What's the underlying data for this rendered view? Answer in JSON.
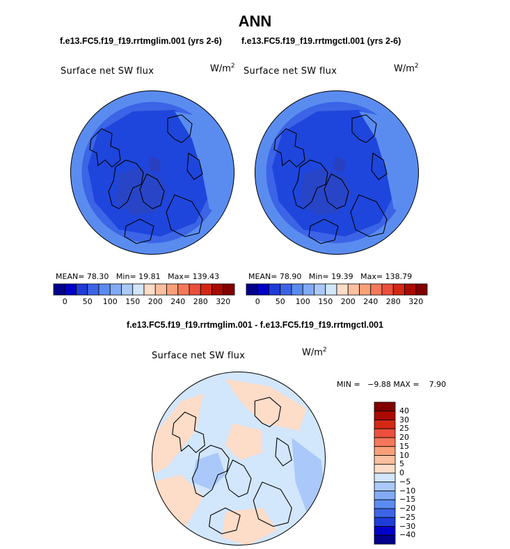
{
  "header": {
    "title": "ANN",
    "left_case": "f.e13.FC5.f19_f19.rrtmglim.001 (yrs 2-6)",
    "right_case": "f.e13.FC5.f19_f19.rrtmgctl.001 (yrs 2-6)",
    "diff_title": "f.e13.FC5.f19_f19.rrtmglim.001 - f.e13.FC5.f19_f19.rrtmgctl.001"
  },
  "colors": {
    "blues": [
      "#00008c",
      "#0000c8",
      "#1e3cd7",
      "#3c64e6",
      "#5a8cf0",
      "#82aaf5",
      "#aac8fa",
      "#d2e6fc"
    ],
    "reds": [
      "#fddcc8",
      "#fcc0a0",
      "#faa078",
      "#f5785a",
      "#eb503c",
      "#d22814",
      "#aa0a00",
      "#820000"
    ],
    "map_base": "#3c64e6",
    "map_inner": "#1e46dc",
    "map_dark": "#2845c8",
    "map_light": "#5a8cf0",
    "diff_base": "#d2e6fc",
    "diff_warm": "#fddcc8",
    "diff_cool": "#aac8fa"
  },
  "chart_data": [
    {
      "type": "heatmap",
      "panel": "left",
      "title": "Surface net SW flux",
      "units": "W/m",
      "unit_sup": "2",
      "stats": {
        "mean_label": "MEAN=",
        "mean": "78.30",
        "min_label": "Min=",
        "min": "19.81",
        "max_label": "Max=",
        "max": "139.43"
      },
      "colorbar_ticks": [
        "0",
        "50",
        "100",
        "150",
        "200",
        "240",
        "280",
        "320"
      ]
    },
    {
      "type": "heatmap",
      "panel": "right",
      "title": "Surface net SW flux",
      "units": "W/m",
      "unit_sup": "2",
      "stats": {
        "mean_label": "MEAN=",
        "mean": "78.90",
        "min_label": "Min=",
        "min": "19.39",
        "max_label": "Max=",
        "max": "138.79"
      },
      "colorbar_ticks": [
        "0",
        "50",
        "100",
        "150",
        "200",
        "240",
        "280",
        "320"
      ]
    },
    {
      "type": "heatmap",
      "panel": "difference",
      "title": "Surface net SW flux",
      "units": "W/m",
      "unit_sup": "2",
      "stats_text": "MIN =   −9.88 MAX =    7.90",
      "colorbar_ticks": [
        "40",
        "30",
        "25",
        "20",
        "15",
        "10",
        "5",
        "0",
        "−5",
        "−10",
        "−15",
        "−20",
        "−25",
        "−30",
        "−40"
      ],
      "colorbar_colors": [
        "#820000",
        "#aa0a00",
        "#d22814",
        "#eb503c",
        "#f5785a",
        "#faa078",
        "#fcc0a0",
        "#fddcc8",
        "#d2e6fc",
        "#aac8fa",
        "#82aaf5",
        "#5a8cf0",
        "#3c64e6",
        "#1e3cd7",
        "#0000c8",
        "#00008c"
      ]
    }
  ]
}
